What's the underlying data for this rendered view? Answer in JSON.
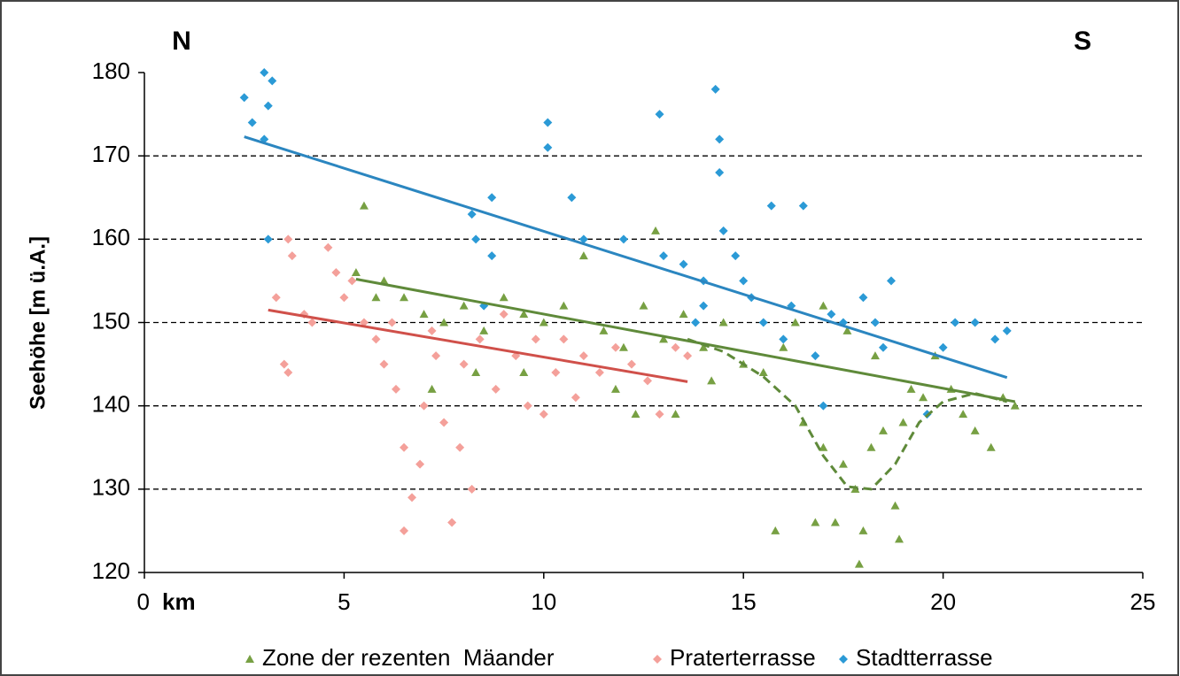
{
  "chart_data": {
    "type": "scatter",
    "y_label": "Seehöhe [m ü.A.]",
    "x_unit": "km",
    "annotations": [
      "N",
      "S"
    ],
    "xlim": [
      0,
      25
    ],
    "xticks": [
      0,
      5,
      10,
      15,
      20,
      25
    ],
    "ylim": [
      120,
      180
    ],
    "yticks": [
      120,
      130,
      140,
      150,
      160,
      170,
      180
    ],
    "grid": true,
    "legend": "bottom",
    "series": [
      {
        "name": "Zone der rezenten  Mäander",
        "color": "#77a043",
        "marker": "triangle",
        "x": [
          5.3,
          5.5,
          5.8,
          6,
          6.5,
          7,
          7.5,
          8,
          8.5,
          9,
          9.5,
          10,
          10.5,
          11,
          11.5,
          12,
          12.5,
          12.8,
          13,
          13.5,
          14,
          14.5,
          15,
          15.5,
          15.8,
          16,
          16.5,
          16.8,
          17,
          17.3,
          17.5,
          17.8,
          17.9,
          18,
          18.2,
          18.5,
          18.8,
          18.9,
          19,
          19.2,
          19.5,
          19.8,
          20.2,
          20.5,
          20.8,
          21.2,
          21.5,
          21.8,
          16.3,
          17,
          17.6,
          18.3,
          14.2,
          13.3,
          12.3,
          11.8,
          7.2,
          8.3,
          9.5
        ],
        "values": [
          156,
          164,
          153,
          155,
          153,
          151,
          150,
          152,
          149,
          153,
          151,
          150,
          152,
          158,
          149,
          147,
          152,
          161,
          148,
          151,
          147,
          150,
          145,
          144,
          125,
          147,
          138,
          126,
          135,
          126,
          133,
          130,
          121,
          125,
          135,
          137,
          128,
          124,
          138,
          142,
          141,
          146,
          142,
          139,
          137,
          135,
          141,
          140,
          150,
          152,
          149,
          146,
          143,
          139,
          139,
          142,
          142,
          144,
          144
        ]
      },
      {
        "name": "Praterterrasse",
        "color": "#f4a09a",
        "marker": "diamond",
        "x": [
          3.3,
          3.5,
          3.6,
          3.7,
          3.6,
          4.2,
          4.6,
          4.8,
          5,
          5.5,
          5.8,
          6,
          6.3,
          6.5,
          6.5,
          6.7,
          6.9,
          7,
          7.3,
          7.5,
          7.7,
          7.9,
          8,
          8.2,
          8.4,
          8.8,
          9,
          9.3,
          9.6,
          10,
          10.3,
          10.5,
          11,
          11.4,
          11.8,
          12.2,
          12.6,
          12.9,
          13.3,
          13.6,
          4,
          5.2,
          6.2,
          7.2,
          9.8,
          10.8
        ],
        "values": [
          153,
          145,
          144,
          158,
          160,
          150,
          159,
          156,
          153,
          150,
          148,
          145,
          142,
          135,
          125,
          129,
          133,
          140,
          146,
          138,
          126,
          135,
          145,
          130,
          148,
          142,
          151,
          146,
          140,
          139,
          144,
          148,
          146,
          144,
          147,
          145,
          143,
          139,
          147,
          146,
          151,
          155,
          150,
          149,
          148,
          141
        ]
      },
      {
        "name": "Stadtterrasse",
        "color": "#2b9ad6",
        "marker": "diamond",
        "x": [
          2.5,
          2.7,
          3,
          3.1,
          3,
          3.2,
          3.1,
          8.2,
          8.3,
          8.7,
          8.7,
          8.5,
          10.1,
          10.1,
          10.7,
          11,
          12,
          12.9,
          13,
          13.5,
          14,
          14.3,
          14.4,
          14.4,
          14.5,
          14,
          14.8,
          15,
          15.5,
          15.7,
          16.5,
          16,
          16.8,
          17,
          17.5,
          18,
          18.3,
          18.7,
          18.5,
          19.6,
          20,
          20.3,
          20.8,
          21.3,
          21.6,
          13.8,
          15.2,
          16.2,
          17.2
        ],
        "values": [
          177,
          174,
          180,
          176,
          172,
          179,
          160,
          163,
          160,
          165,
          158,
          152,
          174,
          171,
          165,
          160,
          160,
          175,
          158,
          157,
          155,
          178,
          168,
          172,
          161,
          152,
          158,
          155,
          150,
          164,
          164,
          148,
          146,
          140,
          150,
          153,
          150,
          155,
          147,
          139,
          147,
          150,
          150,
          148,
          149,
          150,
          153,
          152,
          151
        ]
      }
    ],
    "trendlines": [
      {
        "color": "#2b86c0",
        "x": [
          2.5,
          21.6
        ],
        "values": [
          172.3,
          143.4
        ]
      },
      {
        "color": "#5f8a3a",
        "x": [
          5.3,
          21.8
        ],
        "values": [
          155.2,
          140.5
        ]
      },
      {
        "color": "#d0504a",
        "x": [
          3.1,
          13.6
        ],
        "values": [
          151.5,
          142.9
        ]
      },
      {
        "color": "#5f8a3a",
        "dashed": true,
        "x": [
          13.6,
          14.5,
          15.5,
          16.3,
          17,
          17.6,
          18.2,
          18.8,
          19.4,
          20,
          20.8,
          21.6
        ],
        "values": [
          148,
          146.5,
          143.5,
          140,
          134,
          130.3,
          130,
          133,
          138,
          140.5,
          141.5,
          140.5
        ]
      }
    ]
  }
}
